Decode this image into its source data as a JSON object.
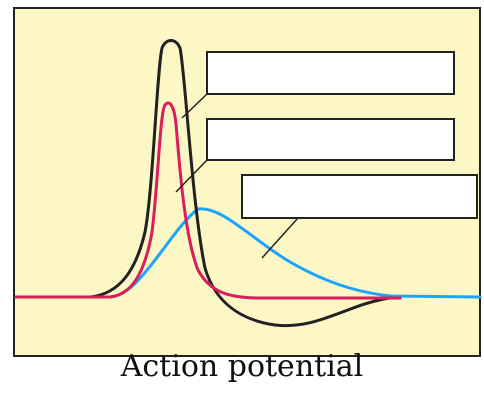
{
  "caption": "Action potential",
  "colors": {
    "panel_background": "#fdf7c6",
    "panel_border": "#222222",
    "label_box_fill": "#ffffff",
    "label_box_border": "#222222",
    "leader_line": "#222222"
  },
  "curves": [
    {
      "id": "black-trace",
      "color": "#222222"
    },
    {
      "id": "red-trace",
      "color": "#d81e5b"
    },
    {
      "id": "blue-trace",
      "color": "#1ea3ff"
    }
  ],
  "label_boxes": [
    {
      "text": ""
    },
    {
      "text": ""
    },
    {
      "text": ""
    }
  ]
}
